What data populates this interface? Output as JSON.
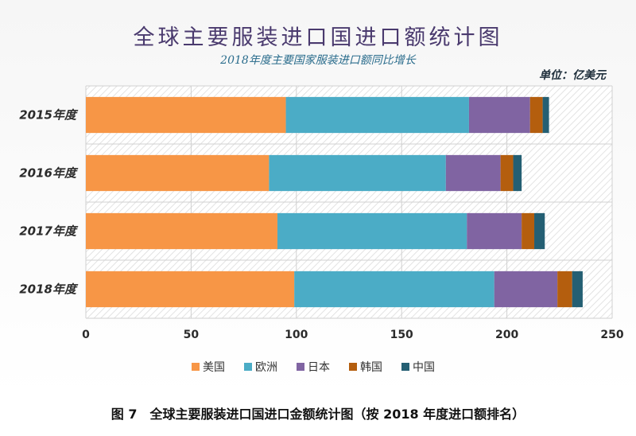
{
  "chart_data": {
    "type": "bar",
    "orientation": "horizontal",
    "stacked": true,
    "title": "全球主要服装进口国进口额统计图",
    "subtitle": "2018年度主要国家服装进口额同比增长",
    "unit_label": "单位：亿美元",
    "categories": [
      "2015年度",
      "2016年度",
      "2017年度",
      "2018年度"
    ],
    "series": [
      {
        "name": "美国",
        "color": "#f79646",
        "values": [
          95,
          87,
          91,
          99
        ]
      },
      {
        "name": "欧洲",
        "color": "#4bacc6",
        "values": [
          87,
          84,
          90,
          95
        ]
      },
      {
        "name": "日本",
        "color": "#8064a2",
        "values": [
          29,
          26,
          26,
          30
        ]
      },
      {
        "name": "韩国",
        "color": "#b45e0e",
        "values": [
          6,
          6,
          6,
          7
        ]
      },
      {
        "name": "中国",
        "color": "#245f73",
        "values": [
          3,
          4,
          5,
          5
        ]
      }
    ],
    "xlim": [
      0,
      250
    ],
    "x_ticks": [
      0,
      50,
      100,
      150,
      200,
      250
    ],
    "grid": true,
    "legend_position": "bottom"
  },
  "caption": "图 7　全球主要服装进口国进口金额统计图（按 2018 年度进口额排名）"
}
